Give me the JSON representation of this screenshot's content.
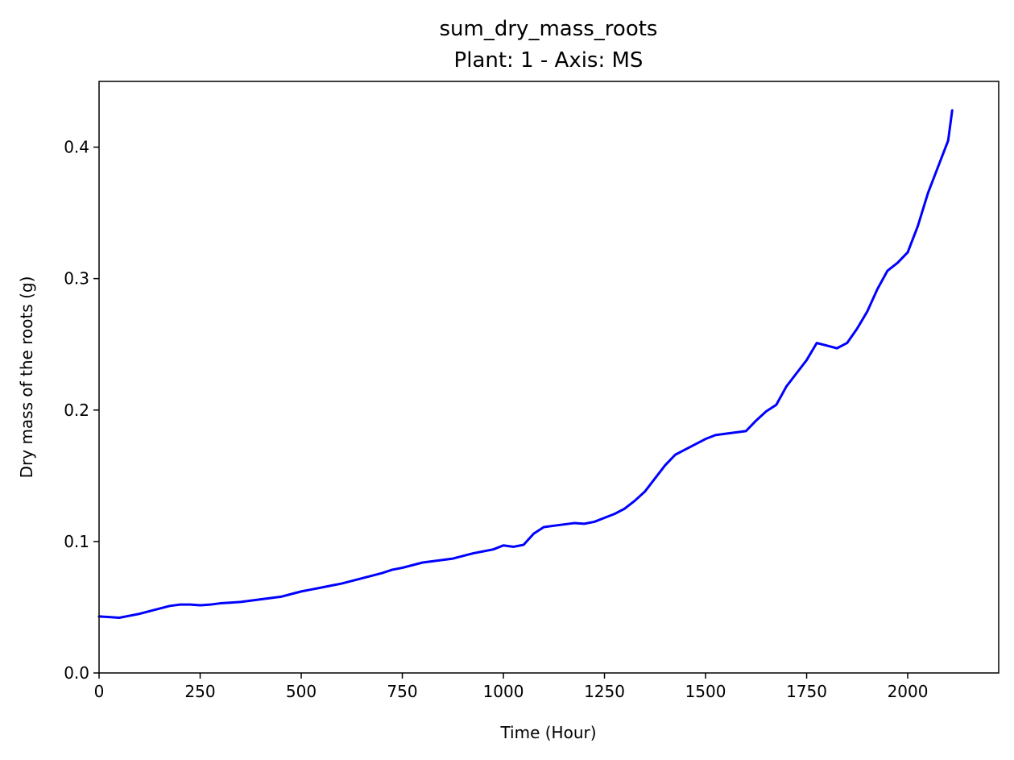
{
  "chart_data": {
    "type": "line",
    "title": "sum_dry_mass_roots",
    "subtitle": "Plant: 1 - Axis: MS",
    "xlabel": "Time (Hour)",
    "ylabel": "Dry mass of the roots (g)",
    "xlim": [
      0,
      2225
    ],
    "ylim": [
      0,
      0.45
    ],
    "xticks": [
      0,
      250,
      500,
      750,
      1000,
      1250,
      1500,
      1750,
      2000
    ],
    "yticks": [
      0.0,
      0.1,
      0.2,
      0.3,
      0.4
    ],
    "xtick_labels": [
      "0",
      "250",
      "500",
      "750",
      "1000",
      "1250",
      "1500",
      "1750",
      "2000"
    ],
    "ytick_labels": [
      "0.0",
      "0.1",
      "0.2",
      "0.3",
      "0.4"
    ],
    "grid": false,
    "line_color": "#0000ff",
    "series": [
      {
        "x": [
          0,
          25,
          50,
          75,
          100,
          125,
          150,
          175,
          200,
          225,
          250,
          275,
          300,
          325,
          350,
          375,
          400,
          425,
          450,
          475,
          500,
          525,
          550,
          575,
          600,
          625,
          650,
          675,
          700,
          725,
          750,
          775,
          800,
          825,
          850,
          875,
          900,
          925,
          950,
          975,
          1000,
          1025,
          1050,
          1075,
          1100,
          1125,
          1150,
          1175,
          1200,
          1225,
          1250,
          1275,
          1300,
          1325,
          1350,
          1375,
          1400,
          1425,
          1450,
          1475,
          1500,
          1525,
          1550,
          1575,
          1600,
          1625,
          1650,
          1675,
          1700,
          1725,
          1750,
          1775,
          1800,
          1825,
          1850,
          1875,
          1900,
          1925,
          1950,
          1975,
          2000,
          2025,
          2050,
          2075,
          2100,
          2110
        ],
        "y": [
          0.043,
          0.0425,
          0.042,
          0.0435,
          0.045,
          0.047,
          0.049,
          0.051,
          0.052,
          0.052,
          0.0515,
          0.052,
          0.053,
          0.0535,
          0.054,
          0.055,
          0.056,
          0.057,
          0.058,
          0.06,
          0.062,
          0.0635,
          0.065,
          0.0665,
          0.068,
          0.07,
          0.072,
          0.074,
          0.076,
          0.0785,
          0.08,
          0.082,
          0.084,
          0.085,
          0.086,
          0.087,
          0.089,
          0.091,
          0.0925,
          0.094,
          0.097,
          0.096,
          0.0975,
          0.106,
          0.111,
          0.112,
          0.113,
          0.114,
          0.1135,
          0.115,
          0.118,
          0.121,
          0.125,
          0.131,
          0.138,
          0.148,
          0.158,
          0.166,
          0.17,
          0.174,
          0.178,
          0.181,
          0.182,
          0.183,
          0.184,
          0.192,
          0.199,
          0.204,
          0.218,
          0.228,
          0.238,
          0.251,
          0.249,
          0.247,
          0.251,
          0.262,
          0.275,
          0.292,
          0.306,
          0.312,
          0.32,
          0.34,
          0.365,
          0.385,
          0.405,
          0.428
        ]
      }
    ]
  }
}
